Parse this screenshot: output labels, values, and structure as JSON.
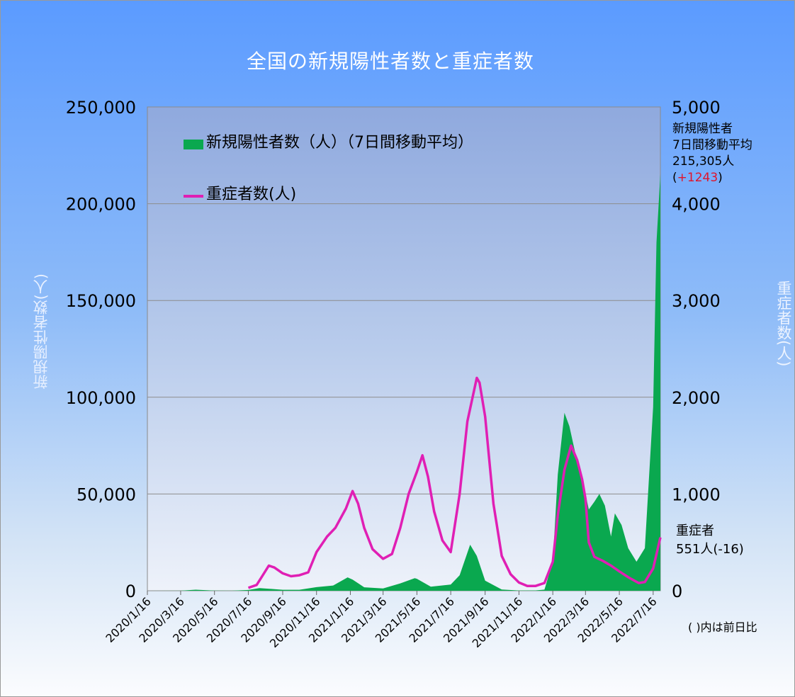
{
  "chart_data": {
    "type": "area",
    "title": "全国の新規陽性者数と重症者数",
    "ylabel_left": "新規陽性者数(人)",
    "ylabel_right": "重症者数(人)",
    "ylim_left": [
      0,
      250000
    ],
    "ylim_right": [
      0,
      5000
    ],
    "y_ticks_left": [
      "0",
      "50,000",
      "100,000",
      "150,000",
      "200,000",
      "250,000"
    ],
    "y_ticks_right": [
      "0",
      "1,000",
      "2,000",
      "3,000",
      "4,000",
      "5,000"
    ],
    "x_ticks": [
      "2020/1/16",
      "2020/3/16",
      "2020/5/16",
      "2020/7/16",
      "2020/9/16",
      "2020/11/16",
      "2021/1/16",
      "2021/3/16",
      "2021/5/16",
      "2021/7/16",
      "2021/9/16",
      "2021/11/16",
      "2022/1/16",
      "2022/3/16",
      "2022/5/16",
      "2022/7/16"
    ],
    "x_range": [
      "2020/1/16",
      "2022/7/29"
    ],
    "grid": true,
    "legend_position": "top-left",
    "series": [
      {
        "name": "新規陽性者数（人）（7日間移動平均）",
        "axis": "left",
        "style": "area",
        "color": "#0aa84f",
        "points": [
          [
            "2020/1/16",
            0
          ],
          [
            "2020/3/16",
            40
          ],
          [
            "2020/4/12",
            550
          ],
          [
            "2020/5/16",
            60
          ],
          [
            "2020/6/16",
            45
          ],
          [
            "2020/7/16",
            420
          ],
          [
            "2020/8/5",
            1380
          ],
          [
            "2020/9/16",
            520
          ],
          [
            "2020/10/16",
            530
          ],
          [
            "2020/11/16",
            1850
          ],
          [
            "2020/12/16",
            2700
          ],
          [
            "2021/1/11",
            6900
          ],
          [
            "2021/1/20",
            5800
          ],
          [
            "2021/2/10",
            1800
          ],
          [
            "2021/3/16",
            1200
          ],
          [
            "2021/4/16",
            3800
          ],
          [
            "2021/5/12",
            6500
          ],
          [
            "2021/5/16",
            6200
          ],
          [
            "2021/6/10",
            2100
          ],
          [
            "2021/7/16",
            3200
          ],
          [
            "2021/8/1",
            8000
          ],
          [
            "2021/8/20",
            23800
          ],
          [
            "2021/9/1",
            18000
          ],
          [
            "2021/9/16",
            5200
          ],
          [
            "2021/10/16",
            650
          ],
          [
            "2021/11/16",
            140
          ],
          [
            "2021/12/16",
            180
          ],
          [
            "2022/1/1",
            600
          ],
          [
            "2022/1/16",
            15000
          ],
          [
            "2022/1/25",
            60000
          ],
          [
            "2022/2/6",
            92000
          ],
          [
            "2022/2/15",
            85000
          ],
          [
            "2022/2/28",
            68000
          ],
          [
            "2022/3/16",
            50000
          ],
          [
            "2022/3/22",
            42000
          ],
          [
            "2022/4/1",
            46000
          ],
          [
            "2022/4/10",
            50000
          ],
          [
            "2022/4/20",
            44000
          ],
          [
            "2022/5/1",
            28000
          ],
          [
            "2022/5/8",
            40000
          ],
          [
            "2022/5/20",
            34000
          ],
          [
            "2022/6/1",
            22000
          ],
          [
            "2022/6/16",
            15000
          ],
          [
            "2022/7/1",
            22000
          ],
          [
            "2022/7/16",
            95000
          ],
          [
            "2022/7/22",
            180000
          ],
          [
            "2022/7/29",
            215305
          ]
        ]
      },
      {
        "name": "重症者数(人)",
        "axis": "right",
        "style": "line",
        "color": "#e01fb4",
        "points": [
          [
            "2020/7/16",
            30
          ],
          [
            "2020/7/31",
            60
          ],
          [
            "2020/8/10",
            150
          ],
          [
            "2020/8/22",
            260
          ],
          [
            "2020/9/1",
            240
          ],
          [
            "2020/9/16",
            180
          ],
          [
            "2020/10/1",
            150
          ],
          [
            "2020/10/16",
            160
          ],
          [
            "2020/11/1",
            190
          ],
          [
            "2020/11/16",
            400
          ],
          [
            "2020/12/5",
            560
          ],
          [
            "2020/12/20",
            650
          ],
          [
            "2021/1/8",
            850
          ],
          [
            "2021/1/20",
            1030
          ],
          [
            "2021/1/30",
            900
          ],
          [
            "2021/2/10",
            650
          ],
          [
            "2021/2/25",
            430
          ],
          [
            "2021/3/16",
            330
          ],
          [
            "2021/4/1",
            380
          ],
          [
            "2021/4/16",
            650
          ],
          [
            "2021/5/1",
            1000
          ],
          [
            "2021/5/16",
            1230
          ],
          [
            "2021/5/26",
            1400
          ],
          [
            "2021/6/5",
            1180
          ],
          [
            "2021/6/16",
            820
          ],
          [
            "2021/7/1",
            520
          ],
          [
            "2021/7/16",
            400
          ],
          [
            "2021/8/1",
            1000
          ],
          [
            "2021/8/15",
            1750
          ],
          [
            "2021/9/1",
            2200
          ],
          [
            "2021/9/6",
            2150
          ],
          [
            "2021/9/16",
            1800
          ],
          [
            "2021/10/1",
            900
          ],
          [
            "2021/10/16",
            360
          ],
          [
            "2021/11/1",
            170
          ],
          [
            "2021/11/16",
            85
          ],
          [
            "2021/12/1",
            50
          ],
          [
            "2021/12/16",
            50
          ],
          [
            "2022/1/1",
            80
          ],
          [
            "2022/1/16",
            300
          ],
          [
            "2022/1/25",
            780
          ],
          [
            "2022/2/6",
            1250
          ],
          [
            "2022/2/18",
            1500
          ],
          [
            "2022/3/1",
            1350
          ],
          [
            "2022/3/10",
            1150
          ],
          [
            "2022/3/16",
            950
          ],
          [
            "2022/3/22",
            500
          ],
          [
            "2022/4/1",
            350
          ],
          [
            "2022/4/16",
            310
          ],
          [
            "2022/5/1",
            260
          ],
          [
            "2022/5/16",
            200
          ],
          [
            "2022/6/1",
            140
          ],
          [
            "2022/6/20",
            80
          ],
          [
            "2022/7/1",
            90
          ],
          [
            "2022/7/16",
            230
          ],
          [
            "2022/7/29",
            551
          ]
        ]
      }
    ]
  },
  "legend": {
    "area_label": "新規陽性者数（人）（7日間移動平均）",
    "line_label": "重症者数(人)"
  },
  "annotations": {
    "positives_line1": "新規陽性者",
    "positives_line2": "7日間移動平均",
    "positives_value": "215,305人",
    "positives_diff_open": "(",
    "positives_diff": "+1243",
    "positives_diff_close": ")",
    "severe_line1": "重症者",
    "severe_value": "551人(-16)",
    "footnote": "( )内は前日比"
  },
  "colors": {
    "area": "#0aa84f",
    "line": "#e01fb4",
    "diff_positive": "#e0142a"
  }
}
